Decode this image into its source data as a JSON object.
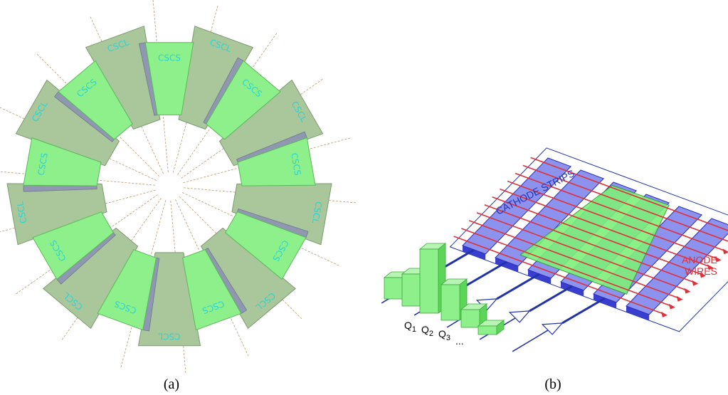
{
  "panel_a": {
    "caption": "(a)",
    "chamber_labels": [
      "CSCS",
      "CSCL",
      "CSCS",
      "CSCL",
      "CSCS",
      "CSCL",
      "CSCS",
      "CSCL",
      "CSCS",
      "CSCL",
      "CSCS",
      "CSCL",
      "CSCS",
      "CSCL",
      "CSCS",
      "CSCL",
      "CSCS",
      "CSCL"
    ]
  },
  "panel_b": {
    "caption": "(b)",
    "cathode_label": "CATHODE STRIPS",
    "anode_label": [
      "ANODE",
      "WIRES"
    ],
    "charges": [
      {
        "letter": "Q",
        "index": "1"
      },
      {
        "letter": "Q",
        "index": "2"
      },
      {
        "letter": "Q",
        "index": "3"
      }
    ],
    "ellipsis": "..."
  }
}
